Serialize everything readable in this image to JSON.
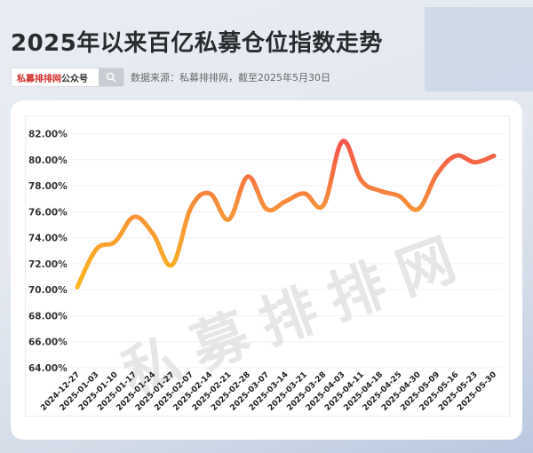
{
  "header": {
    "title": "2025年以来百亿私募仓位指数走势",
    "search_brand": "私募排排网",
    "search_suffix": "公众号",
    "search_icon": "search-icon",
    "source": "数据来源：私募排排网，截至2025年5月30日"
  },
  "watermark": "私募排排网",
  "colors": {
    "line_low": "#FBBB1E",
    "line_mid": "#F7913A",
    "line_high": "#F2504A",
    "brand_red": "#D12B2B"
  },
  "chart_data": {
    "type": "line",
    "title": "2025年以来百亿私募仓位指数走势",
    "xlabel": "",
    "ylabel": "",
    "ylim": [
      64,
      82
    ],
    "yticks": [
      "64.00%",
      "66.00%",
      "68.00%",
      "70.00%",
      "72.00%",
      "74.00%",
      "76.00%",
      "78.00%",
      "80.00%",
      "82.00%"
    ],
    "grid": true,
    "legend": "none",
    "categories": [
      "2024-12-27",
      "2025-01-03",
      "2025-01-10",
      "2025-01-17",
      "2025-01-24",
      "2025-01-27",
      "2025-02-07",
      "2025-02-14",
      "2025-02-21",
      "2025-02-28",
      "2025-03-07",
      "2025-03-14",
      "2025-03-21",
      "2025-03-28",
      "2025-04-03",
      "2025-04-11",
      "2025-04-18",
      "2025-04-25",
      "2025-04-30",
      "2025-05-09",
      "2025-05-16",
      "2025-05-23",
      "2025-05-30"
    ],
    "series": [
      {
        "name": "百亿私募仓位指数",
        "values": [
          70.2,
          73.1,
          73.7,
          75.6,
          74.3,
          71.9,
          76.3,
          77.4,
          75.4,
          78.7,
          76.2,
          76.8,
          77.4,
          76.5,
          81.4,
          78.4,
          77.6,
          77.2,
          76.2,
          78.9,
          80.3,
          79.8,
          80.3
        ]
      }
    ]
  }
}
